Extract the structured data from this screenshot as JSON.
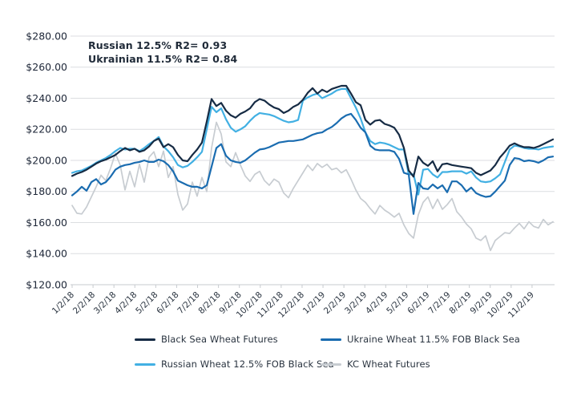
{
  "annotation": {
    "line1": "Russian 12.5% R2= 0.93",
    "line2": "Ukrainian 11.5% R2= 0.84"
  },
  "chart_data": {
    "type": "line",
    "title": "",
    "xlabel": "",
    "ylabel": "",
    "grid": true,
    "legend_position": "bottom",
    "y_axis": {
      "min": 120,
      "max": 280,
      "step": 20
    },
    "y_tick_values": [
      280,
      260,
      240,
      220,
      200,
      180,
      160,
      140,
      120
    ],
    "y_tick_labels": [
      "$280.00",
      "$260.00",
      "$240.00",
      "$220.00",
      "$200.00",
      "$180.00",
      "$160.00",
      "$140.00",
      "$120.00"
    ],
    "x_tick_labels": [
      "1/2/18",
      "2/2/18",
      "3/2/18",
      "4/2/18",
      "5/2/18",
      "6/2/18",
      "7/2/18",
      "8/2/18",
      "9/2/18",
      "10/2/18",
      "11/2/18",
      "12/2/18",
      "1/2/19",
      "2/2/19",
      "3/2/19",
      "4/2/19",
      "5/2/19",
      "6/2/19",
      "7/2/19",
      "8/2/19",
      "9/2/19",
      "10/2/19",
      "11/2/19"
    ],
    "draw_order": [
      3,
      2,
      0,
      1
    ],
    "series": [
      {
        "name": "Black Sea Wheat Futures",
        "color": "#162b44",
        "line_width": 2.2,
        "values": [
          190,
          191.5,
          192.5,
          194,
          196,
          198,
          199.5,
          200.5,
          202,
          203.5,
          206,
          208,
          206.5,
          207.5,
          205.5,
          206.5,
          209,
          212.5,
          214,
          208.5,
          210.5,
          208.5,
          203.5,
          200,
          199.5,
          203.5,
          207,
          211.5,
          225,
          239.5,
          235,
          237,
          232,
          229,
          227.5,
          230,
          231.5,
          233.5,
          237.5,
          239.5,
          238.5,
          236,
          234,
          233,
          230.5,
          232,
          234.5,
          236,
          239,
          243.5,
          246.5,
          243,
          245.5,
          244,
          246,
          247,
          248,
          248,
          243,
          237.5,
          235.5,
          226,
          223,
          225.5,
          226,
          223.5,
          222.5,
          221,
          216.5,
          208,
          193.5,
          189.5,
          202.5,
          198.5,
          196.5,
          199.5,
          193,
          197.5,
          198,
          197,
          196.5,
          196,
          195.5,
          195,
          192,
          190.5,
          192,
          193.5,
          197,
          202,
          205.5,
          209.5,
          211,
          209.5,
          208.5,
          208.5,
          208,
          209,
          210.5,
          212,
          213.5
        ]
      },
      {
        "name": "Ukraine Wheat 11.5% FOB Black Sea",
        "color": "#1a6cb0",
        "line_width": 2.2,
        "values": [
          177.5,
          180,
          183,
          180.5,
          186,
          188,
          184.5,
          186,
          189.5,
          194,
          196,
          197,
          197.5,
          198.5,
          199,
          200,
          199,
          199,
          200.5,
          199.5,
          197,
          193,
          187,
          185.5,
          184,
          183,
          183,
          182,
          184,
          196,
          208,
          210.5,
          203,
          200,
          199,
          198.5,
          200,
          202.5,
          205,
          207,
          207.5,
          208.5,
          210,
          211.5,
          212,
          212.5,
          212.5,
          213,
          213.5,
          215,
          216.5,
          217.5,
          218,
          220,
          221.5,
          224,
          227,
          229,
          230,
          226,
          221,
          218,
          209.5,
          207,
          206.5,
          206.5,
          206.5,
          205.5,
          201,
          192,
          191,
          165.5,
          185.5,
          182,
          181.5,
          184.5,
          182,
          184,
          179.5,
          186.5,
          186.5,
          184,
          180,
          182.5,
          179,
          177.5,
          176.5,
          177,
          180,
          183.5,
          187,
          197,
          201.5,
          201,
          199.5,
          200,
          199.5,
          198.5,
          200,
          202,
          202.5
        ]
      },
      {
        "name": "Russian Wheat 12.5% FOB Black Sea",
        "color": "#42b0e3",
        "line_width": 2.2,
        "values": [
          192,
          193,
          193.5,
          195,
          196.5,
          198.5,
          200,
          201.5,
          203.5,
          206,
          208,
          207,
          207.5,
          207.5,
          206,
          208,
          210.5,
          212.5,
          215,
          209,
          206,
          202,
          197,
          195.5,
          196.5,
          199,
          202,
          205.5,
          220,
          234.5,
          231,
          233.5,
          226.5,
          221,
          218.5,
          220,
          222,
          225.5,
          228.5,
          230.5,
          230,
          229.5,
          228.5,
          227,
          225.5,
          224.5,
          225,
          226,
          238.5,
          240.5,
          242,
          243,
          240,
          241.5,
          243,
          245,
          246,
          246,
          240,
          234,
          227,
          218,
          212.5,
          210.5,
          211.5,
          211,
          210,
          208.5,
          207,
          207,
          191,
          191,
          178,
          194,
          194.5,
          191,
          189,
          192.5,
          192.5,
          193,
          193,
          193,
          191.5,
          193,
          189,
          186.5,
          186,
          186.5,
          188.5,
          191,
          199,
          207,
          209.5,
          209,
          208,
          207.5,
          207.5,
          207,
          208,
          208.5,
          209
        ]
      },
      {
        "name": "KC Wheat Futures",
        "color": "#c7ccd1",
        "line_width": 1.7,
        "values": [
          171,
          166,
          165.5,
          170,
          176.5,
          183,
          190.5,
          187,
          195,
          204.5,
          197,
          181,
          193,
          183,
          197.5,
          186,
          202,
          205.5,
          196,
          206,
          189,
          196,
          178,
          168,
          172,
          186,
          177,
          189,
          180,
          208,
          224.5,
          217,
          199,
          196,
          205,
          197,
          190,
          186.5,
          191,
          193,
          187,
          184,
          188,
          186,
          179,
          176,
          182,
          187,
          192,
          197,
          193.5,
          198,
          195.5,
          197.5,
          194,
          195,
          192,
          194,
          188,
          181,
          175.5,
          173,
          169,
          165.5,
          171,
          168,
          166,
          163.5,
          166,
          158.5,
          153,
          150,
          165,
          173,
          176.5,
          169,
          175,
          168.5,
          171.5,
          175.5,
          167,
          163.5,
          159,
          156,
          150,
          148.5,
          151.5,
          142,
          148.5,
          151,
          153.5,
          153,
          156.5,
          159.5,
          156,
          160.5,
          157.5,
          156.5,
          162,
          158.5,
          160.5
        ]
      }
    ]
  }
}
